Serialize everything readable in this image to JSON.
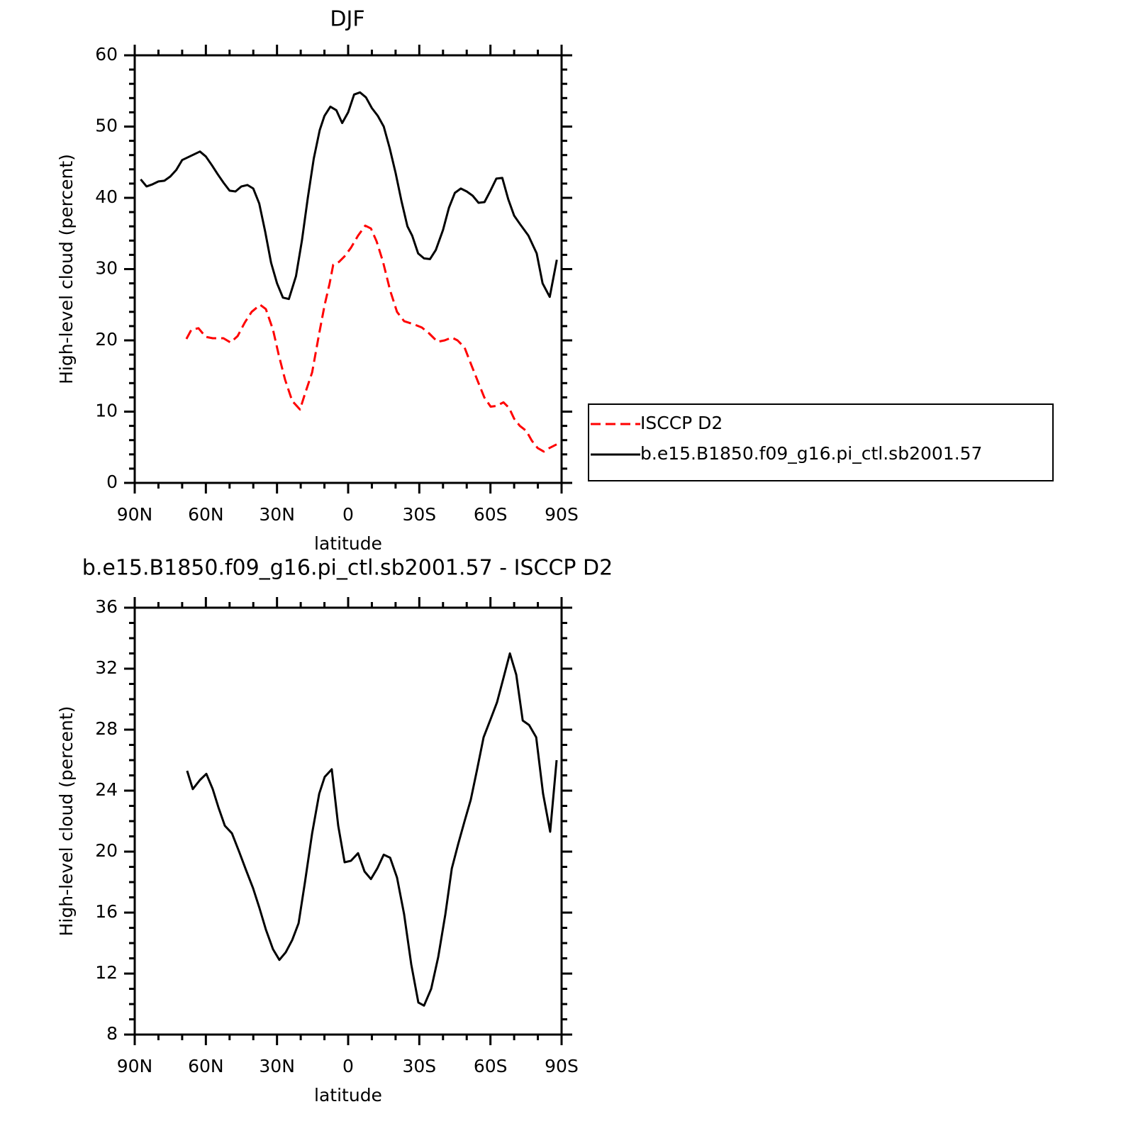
{
  "chart_data": [
    {
      "type": "line",
      "title": "DJF",
      "xlabel": "latitude",
      "ylabel": "High-level cloud (percent)",
      "xlim": [
        90,
        -90
      ],
      "xticks": [
        {
          "value": 90,
          "label": "90N"
        },
        {
          "value": 60,
          "label": "60N"
        },
        {
          "value": 30,
          "label": "30N"
        },
        0,
        {
          "value": -30,
          "label": "30S"
        },
        {
          "value": -60,
          "label": "60S"
        },
        {
          "value": -90,
          "label": "90S"
        }
      ],
      "ylim": [
        0,
        60
      ],
      "yticks": [
        0,
        10,
        20,
        30,
        40,
        50,
        60
      ],
      "legend": "right",
      "series": [
        {
          "name": "ISCCP D2",
          "color": "#ff0000",
          "dashed": true,
          "x": [
            68.2,
            66.1,
            63.1,
            60.1,
            57.1,
            52.6,
            49.6,
            46.6,
            43.6,
            40.7,
            37.1,
            34.7,
            31.7,
            29.3,
            26.6,
            23.6,
            20.3,
            18.2,
            15.2,
            12.2,
            9.9,
            7.8,
            6.3,
            3.9,
            1.5,
            -1.2,
            -4.2,
            -7.2,
            -9.6,
            -12.0,
            -14.7,
            -17.7,
            -20.6,
            -23.6,
            -28.1,
            -31.1,
            -34.1,
            -37.7,
            -40.7,
            -43.7,
            -46.1,
            -49.1,
            -52.0,
            -55.0,
            -57.4,
            -60.1,
            -62.5,
            -65.5,
            -67.9,
            -70.0,
            -72.4,
            -75.1,
            -77.5,
            -79.9,
            -82.5,
            -84.9,
            -87.9
          ],
          "values": [
            20.2,
            21.5,
            21.7,
            20.5,
            20.3,
            20.3,
            19.7,
            20.6,
            22.5,
            24.0,
            25.0,
            24.4,
            21.5,
            18.0,
            14.5,
            11.5,
            10.3,
            12.5,
            15.5,
            21.0,
            25.0,
            28.0,
            30.6,
            31.0,
            31.8,
            33.0,
            34.7,
            36.1,
            35.7,
            33.9,
            31.0,
            27.0,
            24.0,
            22.7,
            22.2,
            21.8,
            21.0,
            19.8,
            20.0,
            20.4,
            20.0,
            19.0,
            16.5,
            14.0,
            12.0,
            10.7,
            10.8,
            11.3,
            10.5,
            9.0,
            8.0,
            7.3,
            5.9,
            4.9,
            4.4,
            4.9,
            5.4
          ]
        },
        {
          "name": "b.e15.B1850.f09_g16.pi_ctl.sb2001.57",
          "color": "#000000",
          "dashed": false,
          "x": [
            87.5,
            85,
            82.5,
            80,
            77.5,
            75,
            72.5,
            70,
            67.5,
            62.5,
            60,
            57.5,
            55,
            52.5,
            50,
            47.5,
            45,
            42.5,
            40,
            37.5,
            35,
            32.5,
            30,
            27.5,
            25,
            22,
            19.5,
            17,
            14.5,
            12,
            10,
            7.5,
            5,
            2.5,
            0,
            -2.5,
            -5,
            -7.5,
            -10,
            -12.5,
            -15,
            -17.5,
            -20,
            -22.5,
            -25,
            -27,
            -29.5,
            -32,
            -34.5,
            -37,
            -40,
            -42.5,
            -45,
            -47.5,
            -50,
            -52.5,
            -55,
            -57.5,
            -60,
            -62.5,
            -65,
            -67.5,
            -70,
            -72.5,
            -76,
            -79.5,
            -82,
            -85,
            -88
          ],
          "values": [
            42.6,
            41.6,
            41.9,
            42.3,
            42.4,
            43.0,
            43.9,
            45.3,
            45.7,
            46.5,
            45.8,
            44.6,
            43.3,
            42.1,
            41.0,
            40.9,
            41.6,
            41.8,
            41.3,
            39.2,
            35.3,
            30.9,
            28.0,
            26.0,
            25.8,
            29.0,
            34.0,
            40.0,
            45.5,
            49.5,
            51.5,
            52.8,
            52.3,
            50.5,
            52.0,
            54.5,
            54.8,
            54.1,
            52.6,
            51.5,
            50.0,
            47.0,
            43.5,
            39.5,
            36.0,
            34.7,
            32.2,
            31.5,
            31.4,
            32.7,
            35.5,
            38.6,
            40.7,
            41.3,
            40.9,
            40.3,
            39.3,
            39.4,
            41.0,
            42.7,
            42.8,
            39.8,
            37.5,
            36.3,
            34.7,
            32.2,
            28.0,
            26.1,
            31.3
          ]
        }
      ]
    },
    {
      "type": "line",
      "title": "b.e15.B1850.f09_g16.pi_ctl.sb2001.57 - ISCCP D2",
      "xlabel": "latitude",
      "ylabel": "High-level cloud (percent)",
      "xlim": [
        90,
        -90
      ],
      "xticks": [
        {
          "value": 90,
          "label": "90N"
        },
        {
          "value": 60,
          "label": "60N"
        },
        {
          "value": 30,
          "label": "30N"
        },
        0,
        {
          "value": -30,
          "label": "30S"
        },
        {
          "value": -60,
          "label": "60S"
        },
        {
          "value": -90,
          "label": "90S"
        }
      ],
      "ylim": [
        8,
        36
      ],
      "yticks": [
        8,
        12,
        16,
        20,
        24,
        28,
        32,
        36
      ],
      "series": [
        {
          "color": "#000000",
          "dashed": false,
          "x": [
            67.9,
            65.5,
            62.5,
            59.8,
            57.1,
            54.7,
            52.0,
            49.0,
            46.0,
            43.1,
            40.1,
            37.4,
            34.7,
            31.7,
            29.0,
            26.3,
            23.6,
            20.9,
            18.2,
            15.2,
            12.2,
            9.9,
            6.9,
            4.2,
            1.5,
            -1.2,
            -4.2,
            -6.9,
            -9.6,
            -12.3,
            -15.0,
            -17.7,
            -20.6,
            -23.6,
            -26.6,
            -29.6,
            -32.0,
            -35.0,
            -38.0,
            -41.0,
            -43.7,
            -46.4,
            -49.1,
            -51.7,
            -54.4,
            -57.1,
            -60.1,
            -62.8,
            -65.5,
            -68.2,
            -70.9,
            -73.6,
            -76.3,
            -79.3,
            -82.2,
            -85.2,
            -87.9
          ],
          "values": [
            25.3,
            24.1,
            24.7,
            25.1,
            24.1,
            22.9,
            21.7,
            21.2,
            20.0,
            18.8,
            17.6,
            16.3,
            14.9,
            13.6,
            12.9,
            13.4,
            14.2,
            15.3,
            18.0,
            21.2,
            23.8,
            24.9,
            25.4,
            21.7,
            19.3,
            19.4,
            19.9,
            18.7,
            18.2,
            18.9,
            19.8,
            19.6,
            18.3,
            15.9,
            12.6,
            10.1,
            9.9,
            11.0,
            13.1,
            15.9,
            18.9,
            20.5,
            22.0,
            23.4,
            25.4,
            27.5,
            28.7,
            29.8,
            31.4,
            33.0,
            31.6,
            28.6,
            28.3,
            27.5,
            23.8,
            21.3,
            26.0
          ]
        }
      ]
    }
  ]
}
